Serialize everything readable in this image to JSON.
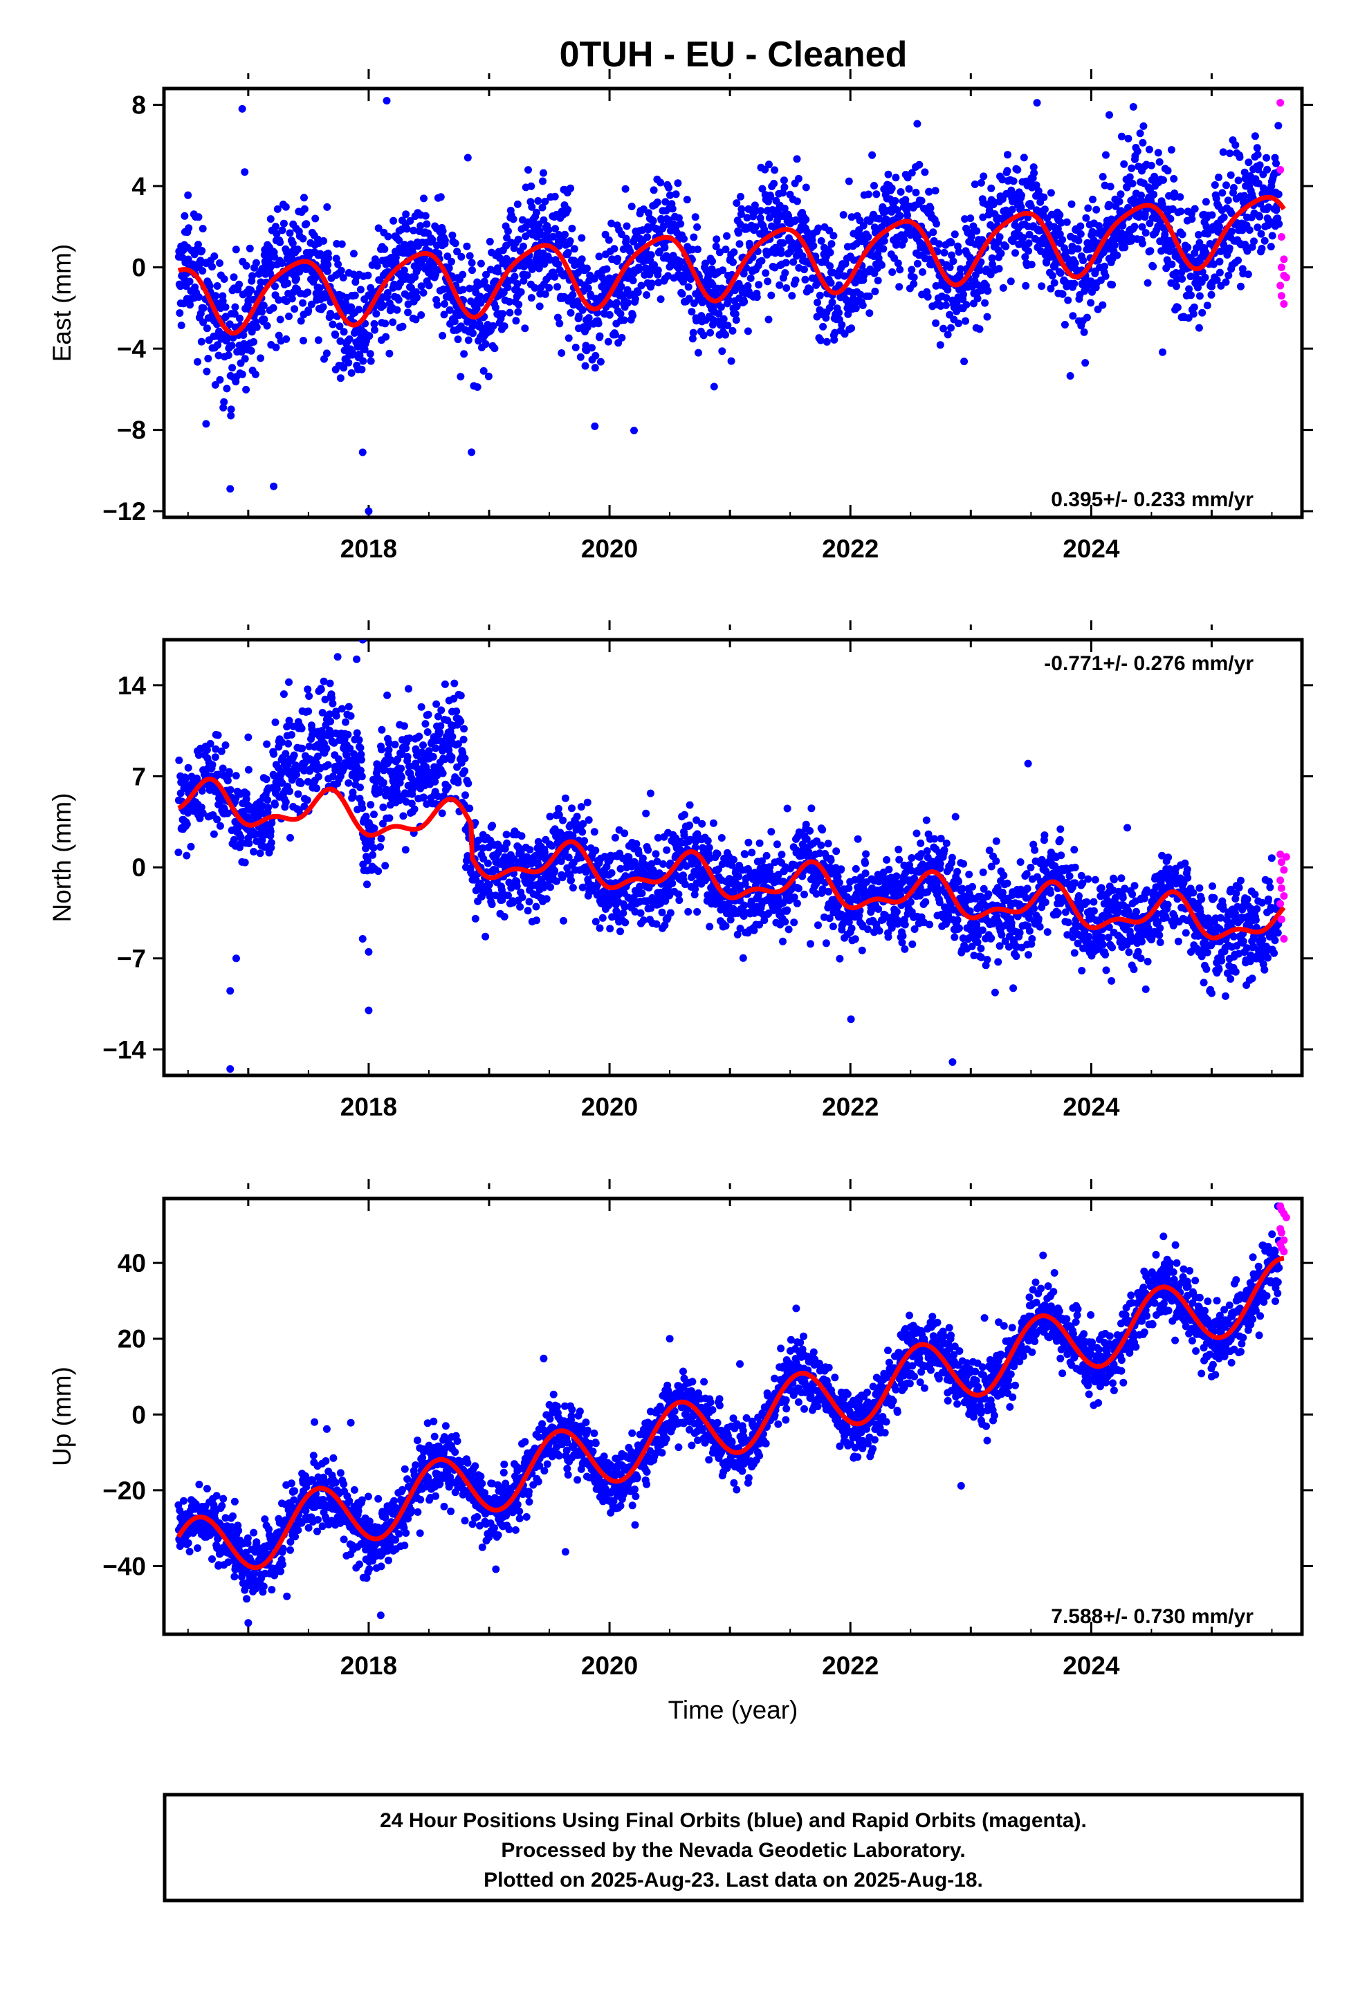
{
  "page_title": "0TUH  - EU - Cleaned",
  "colors": {
    "final_orbits": "#0000ff",
    "rapid_orbits": "#ff00ff",
    "model_fit": "#ff0000"
  },
  "chart_data": [
    {
      "type": "scatter",
      "component": "East",
      "ylabel": "East (mm)",
      "xlabel": "",
      "xlim": [
        2016.3,
        2025.75
      ],
      "ylim": [
        -12.3,
        8.8
      ],
      "yticks": [
        -12,
        -8,
        -4,
        0,
        4,
        8
      ],
      "xticks": [
        2018,
        2020,
        2022,
        2024
      ],
      "rate_text": "0.395+/- 0.233 mm/yr",
      "rate_position": "bottom-right",
      "model": {
        "offset": -1.56,
        "rate": 0.395,
        "amplitude": 1.6,
        "phase_peak": 0.4,
        "outlier_points": [
          [
            2016.65,
            -7.7
          ],
          [
            2016.85,
            -10.9
          ],
          [
            2016.95,
            7.8
          ],
          [
            2017.95,
            -9.1
          ],
          [
            2018.0,
            -12.0
          ],
          [
            2018.15,
            8.2
          ],
          [
            2023.55,
            8.1
          ],
          [
            2024.35,
            7.9
          ],
          [
            2023.95,
            -4.7
          ],
          [
            2024.15,
            7.5
          ]
        ]
      },
      "rapid_points": [
        [
          2025.57,
          8.1
        ],
        [
          2025.57,
          4.8
        ],
        [
          2025.58,
          1.5
        ],
        [
          2025.6,
          0.4
        ],
        [
          2025.58,
          0.0
        ],
        [
          2025.6,
          -0.4
        ],
        [
          2025.57,
          -0.9
        ],
        [
          2025.58,
          -1.4
        ],
        [
          2025.6,
          -1.8
        ],
        [
          2025.62,
          -0.5
        ]
      ]
    },
    {
      "type": "scatter",
      "component": "North",
      "ylabel": "North (mm)",
      "xlabel": "",
      "xlim": [
        2016.3,
        2025.75
      ],
      "ylim": [
        -16.0,
        17.5
      ],
      "yticks": [
        -14,
        -7,
        0,
        7,
        14
      ],
      "xticks": [
        2018,
        2020,
        2022,
        2024
      ],
      "rate_text": "-0.771+/- 0.276 mm/yr",
      "rate_position": "top-right",
      "model": {
        "offset": 5.05,
        "rate": -0.771,
        "amplitude": 1.3,
        "phase_peak": 0.65,
        "outlier_points": [
          [
            2016.85,
            -15.5
          ],
          [
            2016.85,
            -9.5
          ],
          [
            2016.9,
            -7.0
          ],
          [
            2017.0,
            10.0
          ],
          [
            2017.95,
            17.5
          ],
          [
            2017.9,
            16.0
          ],
          [
            2018.0,
            -11.0
          ],
          [
            2017.95,
            -5.5
          ],
          [
            2018.0,
            -6.5
          ]
        ]
      },
      "rapid_points": [
        [
          2025.57,
          1.0
        ],
        [
          2025.58,
          0.4
        ],
        [
          2025.6,
          -0.2
        ],
        [
          2025.57,
          -1.0
        ],
        [
          2025.58,
          -1.6
        ],
        [
          2025.6,
          -2.2
        ],
        [
          2025.57,
          -2.8
        ],
        [
          2025.58,
          -4.0
        ],
        [
          2025.6,
          -5.5
        ],
        [
          2025.62,
          0.8
        ]
      ]
    },
    {
      "type": "scatter",
      "component": "Up",
      "ylabel": "Up (mm)",
      "xlabel": "Time (year)",
      "xlim": [
        2016.3,
        2025.75
      ],
      "ylim": [
        -58.0,
        57.0
      ],
      "yticks": [
        -40,
        -20,
        0,
        20,
        40
      ],
      "xticks": [
        2018,
        2020,
        2022,
        2024
      ],
      "rate_text": "7.588+/- 0.730 mm/yr",
      "rate_position": "bottom-right",
      "model": {
        "offset": -37.0,
        "rate": 7.588,
        "amplitude": 8.5,
        "phase_peak": 0.58,
        "outlier_points": [
          [
            2017.0,
            -55.0
          ],
          [
            2018.1,
            -53.0
          ],
          [
            2017.55,
            -2.0
          ],
          [
            2020.5,
            20.0
          ],
          [
            2021.55,
            28.0
          ],
          [
            2023.6,
            42.0
          ],
          [
            2024.6,
            47.0
          ],
          [
            2025.0,
            10.0
          ],
          [
            2025.55,
            55.0
          ]
        ]
      },
      "rapid_points": [
        [
          2025.57,
          55.0
        ],
        [
          2025.58,
          54.0
        ],
        [
          2025.6,
          53.0
        ],
        [
          2025.57,
          49.0
        ],
        [
          2025.58,
          48.0
        ],
        [
          2025.6,
          46.0
        ],
        [
          2025.57,
          45.0
        ],
        [
          2025.58,
          44.0
        ],
        [
          2025.6,
          43.0
        ],
        [
          2025.62,
          52.0
        ]
      ]
    }
  ],
  "footer": {
    "line1": "24 Hour Positions Using Final Orbits (blue) and Rapid Orbits (magenta).",
    "line2": "Processed by the Nevada Geodetic Laboratory.",
    "line3": "Plotted on 2025-Aug-23. Last data on 2025-Aug-18."
  }
}
